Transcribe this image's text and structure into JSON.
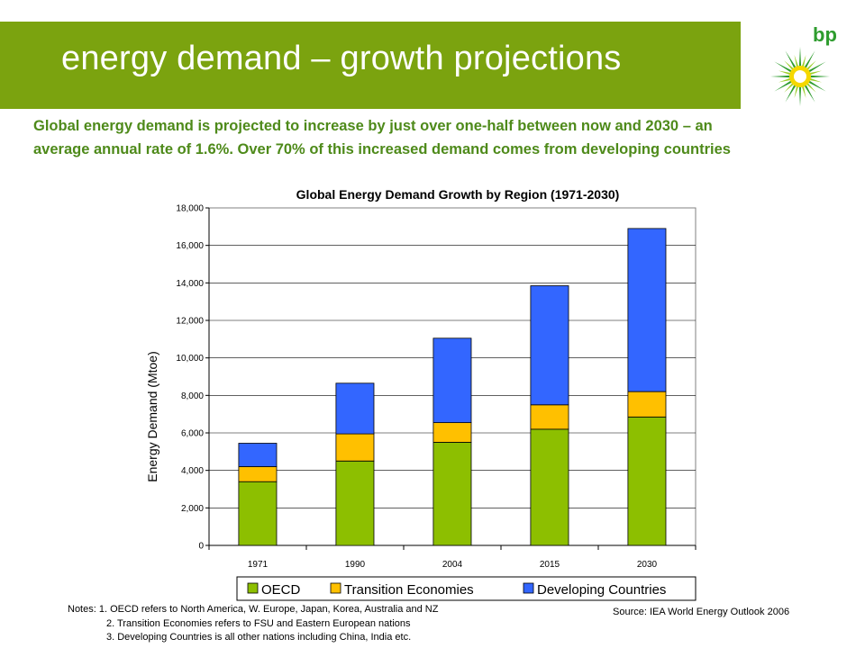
{
  "slide": {
    "title": "energy demand – growth projections",
    "intro": "Global energy demand is projected to increase by just over one-half between now and 2030 – an average annual rate of 1.6%.  Over 70% of this increased demand comes from developing countries",
    "logo_text": "bp"
  },
  "colors": {
    "header_green": "#7ba30f",
    "text_green": "#4e8a1a",
    "oecd": "#8dbf00",
    "transition": "#ffc000",
    "developing": "#3366ff"
  },
  "chart_data": {
    "type": "bar",
    "stacked": true,
    "title": "Global Energy Demand Growth by Region (1971-2030)",
    "ylabel": "Energy Demand (Mtoe)",
    "xlabel": "",
    "categories": [
      "1971",
      "1990",
      "2004",
      "2015",
      "2030"
    ],
    "series": [
      {
        "name": "OECD",
        "values": [
          3400,
          4500,
          5500,
          6200,
          6850
        ]
      },
      {
        "name": "Transition Economies",
        "values": [
          800,
          1450,
          1050,
          1300,
          1350
        ]
      },
      {
        "name": "Developing Countries",
        "values": [
          1250,
          2700,
          4500,
          6350,
          8700
        ]
      }
    ],
    "ylim": [
      0,
      18000
    ],
    "yticks": [
      "0",
      "2,000",
      "4,000",
      "6,000",
      "8,000",
      "10,000",
      "12,000",
      "14,000",
      "16,000",
      "18,000"
    ],
    "grid": true,
    "legend_position": "bottom"
  },
  "notes": {
    "lines": [
      "Notes:  1. OECD refers to North America, W. Europe, Japan, Korea, Australia and NZ",
      "2. Transition Economies refers to FSU and Eastern European nations",
      "3. Developing Countries is all other nations including China, India etc."
    ]
  },
  "source": "Source: IEA World Energy Outlook 2006"
}
